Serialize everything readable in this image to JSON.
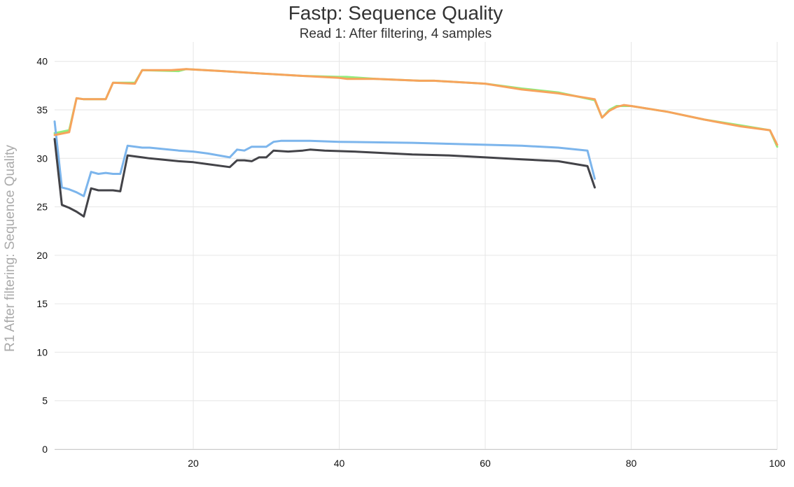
{
  "chart_data": {
    "type": "line",
    "title": "Fastp: Sequence Quality",
    "subtitle": "Read 1: After filtering, 4 samples",
    "xlabel": "",
    "ylabel": "R1 After filtering: Sequence Quality",
    "xlim": [
      1,
      100
    ],
    "ylim": [
      0,
      42
    ],
    "x_ticks": [
      20,
      40,
      60,
      80,
      100
    ],
    "y_ticks": [
      0,
      5,
      10,
      15,
      20,
      25,
      30,
      35,
      40
    ],
    "grid": true,
    "legend": "none",
    "series": [
      {
        "color": "#90ed7d",
        "points": [
          [
            1,
            32.6
          ],
          [
            3,
            32.9
          ],
          [
            4,
            36.2
          ],
          [
            5,
            36.1
          ],
          [
            8,
            36.1
          ],
          [
            9,
            37.8
          ],
          [
            12,
            37.8
          ],
          [
            13,
            39.1
          ],
          [
            18,
            39.0
          ],
          [
            19,
            39.2
          ],
          [
            24,
            39.0
          ],
          [
            28,
            38.8
          ],
          [
            35,
            38.5
          ],
          [
            40,
            38.4
          ],
          [
            41,
            38.4
          ],
          [
            45,
            38.2
          ],
          [
            51,
            38.0
          ],
          [
            53,
            38.0
          ],
          [
            60,
            37.7
          ],
          [
            65,
            37.2
          ],
          [
            70,
            36.8
          ],
          [
            75,
            36.0
          ],
          [
            76,
            34.2
          ],
          [
            77,
            35.0
          ],
          [
            78,
            35.4
          ],
          [
            79,
            35.4
          ],
          [
            80,
            35.4
          ],
          [
            85,
            34.8
          ],
          [
            90,
            34.0
          ],
          [
            95,
            33.4
          ],
          [
            99,
            32.9
          ],
          [
            100,
            31.2
          ]
        ]
      },
      {
        "color": "#7cb5ec",
        "points": [
          [
            1,
            33.8
          ],
          [
            2,
            27.0
          ],
          [
            3,
            26.8
          ],
          [
            4,
            26.5
          ],
          [
            5,
            26.1
          ],
          [
            6,
            28.6
          ],
          [
            7,
            28.4
          ],
          [
            8,
            28.5
          ],
          [
            9,
            28.4
          ],
          [
            10,
            28.4
          ],
          [
            11,
            31.3
          ],
          [
            13,
            31.1
          ],
          [
            14,
            31.1
          ],
          [
            18,
            30.8
          ],
          [
            20,
            30.7
          ],
          [
            22,
            30.5
          ],
          [
            25,
            30.1
          ],
          [
            26,
            30.9
          ],
          [
            27,
            30.8
          ],
          [
            28,
            31.2
          ],
          [
            30,
            31.2
          ],
          [
            31,
            31.7
          ],
          [
            32,
            31.8
          ],
          [
            36,
            31.8
          ],
          [
            40,
            31.7
          ],
          [
            50,
            31.6
          ],
          [
            55,
            31.5
          ],
          [
            60,
            31.4
          ],
          [
            65,
            31.3
          ],
          [
            70,
            31.1
          ],
          [
            74,
            30.8
          ],
          [
            75,
            27.9
          ]
        ]
      },
      {
        "color": "#434348",
        "points": [
          [
            1,
            32.0
          ],
          [
            2,
            25.2
          ],
          [
            3,
            24.9
          ],
          [
            4,
            24.5
          ],
          [
            5,
            24.0
          ],
          [
            6,
            26.9
          ],
          [
            7,
            26.7
          ],
          [
            8,
            26.7
          ],
          [
            9,
            26.7
          ],
          [
            10,
            26.6
          ],
          [
            11,
            30.3
          ],
          [
            13,
            30.1
          ],
          [
            14,
            30.0
          ],
          [
            18,
            29.7
          ],
          [
            20,
            29.6
          ],
          [
            22,
            29.4
          ],
          [
            25,
            29.1
          ],
          [
            26,
            29.8
          ],
          [
            27,
            29.8
          ],
          [
            28,
            29.7
          ],
          [
            29,
            30.1
          ],
          [
            30,
            30.1
          ],
          [
            31,
            30.8
          ],
          [
            33,
            30.7
          ],
          [
            35,
            30.8
          ],
          [
            36,
            30.9
          ],
          [
            38,
            30.8
          ],
          [
            42,
            30.7
          ],
          [
            50,
            30.4
          ],
          [
            55,
            30.3
          ],
          [
            60,
            30.1
          ],
          [
            65,
            29.9
          ],
          [
            70,
            29.7
          ],
          [
            74,
            29.2
          ],
          [
            75,
            27.0
          ]
        ]
      },
      {
        "color": "#f7a35c",
        "points": [
          [
            1,
            32.4
          ],
          [
            3,
            32.7
          ],
          [
            4,
            36.2
          ],
          [
            5,
            36.1
          ],
          [
            8,
            36.1
          ],
          [
            9,
            37.8
          ],
          [
            12,
            37.7
          ],
          [
            13,
            39.1
          ],
          [
            17,
            39.1
          ],
          [
            19,
            39.2
          ],
          [
            24,
            39.0
          ],
          [
            28,
            38.8
          ],
          [
            35,
            38.5
          ],
          [
            40,
            38.3
          ],
          [
            41,
            38.2
          ],
          [
            45,
            38.2
          ],
          [
            51,
            38.0
          ],
          [
            53,
            38.0
          ],
          [
            60,
            37.7
          ],
          [
            65,
            37.1
          ],
          [
            70,
            36.7
          ],
          [
            75,
            36.1
          ],
          [
            76,
            34.2
          ],
          [
            77,
            34.9
          ],
          [
            78,
            35.3
          ],
          [
            79,
            35.5
          ],
          [
            80,
            35.4
          ],
          [
            85,
            34.8
          ],
          [
            90,
            34.0
          ],
          [
            95,
            33.3
          ],
          [
            99,
            32.9
          ],
          [
            100,
            31.4
          ]
        ]
      }
    ]
  }
}
